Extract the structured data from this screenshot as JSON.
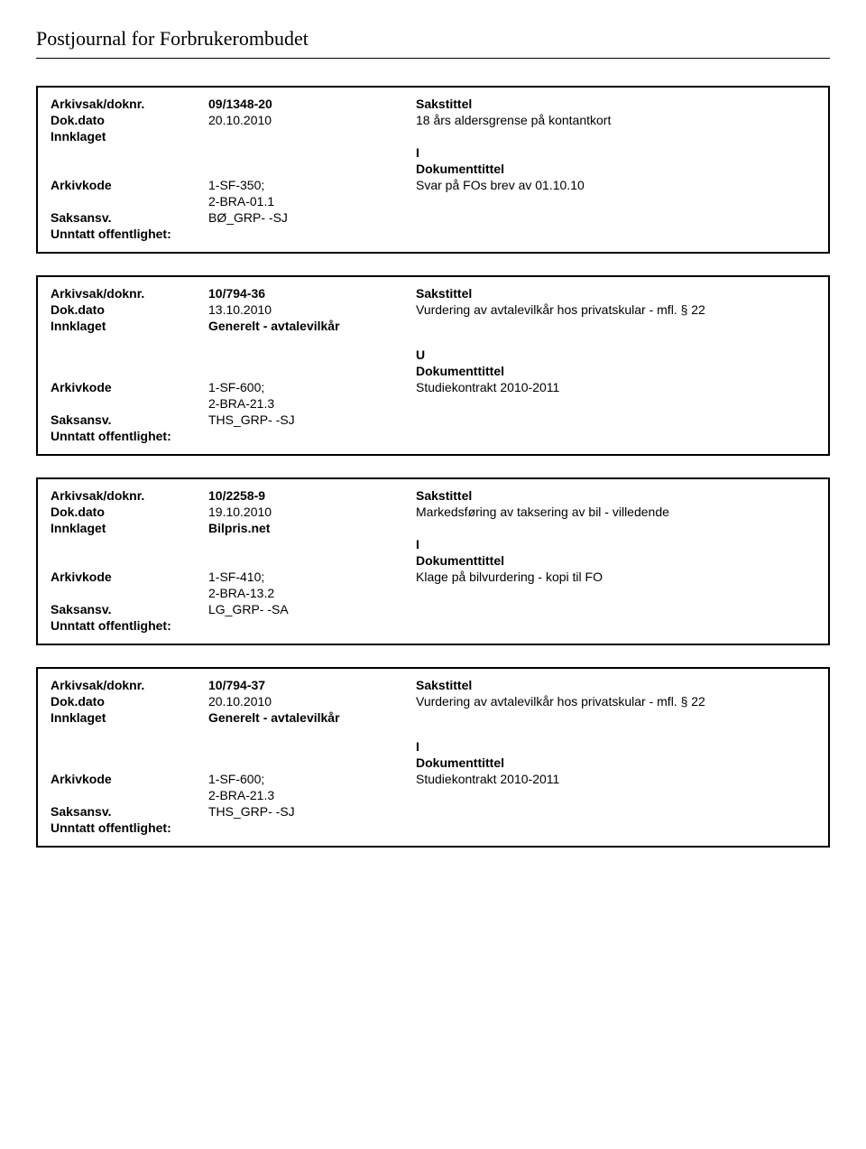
{
  "page": {
    "title": "Postjournal for Forbrukerombudet"
  },
  "labels": {
    "arkivsak": "Arkivsak/doknr.",
    "dokdato": "Dok.dato",
    "innklaget": "Innklaget",
    "arkivkode": "Arkivkode",
    "saksansv": "Saksansv.",
    "unntatt": "Unntatt offentlighet:",
    "sakstittel": "Sakstittel",
    "dokumenttittel": "Dokumenttittel"
  },
  "records": [
    {
      "doknr": "09/1348-20",
      "dato": "20.10.2010",
      "sakstittel": "18 års aldersgrense på kontantkort",
      "innklaget": "",
      "doc_type": "I",
      "arkivkode_lines": [
        "1-SF-350;",
        "2-BRA-01.1"
      ],
      "dokumenttittel": "Svar på FOs brev av 01.10.10",
      "saksansv": "BØ_GRP- -SJ",
      "gap_after_innklaget": false
    },
    {
      "doknr": "10/794-36",
      "dato": "13.10.2010",
      "sakstittel": "Vurdering av avtalevilkår hos privatskular  - mfl. § 22",
      "innklaget": "Generelt - avtalevilkår",
      "doc_type": "U",
      "arkivkode_lines": [
        "1-SF-600;",
        "2-BRA-21.3"
      ],
      "dokumenttittel": "Studiekontrakt 2010-2011",
      "saksansv": "THS_GRP- -SJ",
      "gap_after_innklaget": true
    },
    {
      "doknr": "10/2258-9",
      "dato": "19.10.2010",
      "sakstittel": "Markedsføring av taksering av bil - villedende",
      "innklaget": "Bilpris.net",
      "doc_type": "I",
      "arkivkode_lines": [
        "1-SF-410;",
        "2-BRA-13.2"
      ],
      "dokumenttittel": "Klage på bilvurdering - kopi til FO",
      "saksansv": "LG_GRP- -SA",
      "gap_after_innklaget": false
    },
    {
      "doknr": "10/794-37",
      "dato": "20.10.2010",
      "sakstittel": "Vurdering av avtalevilkår hos privatskular  - mfl. § 22",
      "innklaget": "Generelt - avtalevilkår",
      "doc_type": "I",
      "arkivkode_lines": [
        "1-SF-600;",
        "2-BRA-21.3"
      ],
      "dokumenttittel": "Studiekontrakt 2010-2011",
      "saksansv": "THS_GRP- -SJ",
      "gap_after_innklaget": true
    }
  ]
}
